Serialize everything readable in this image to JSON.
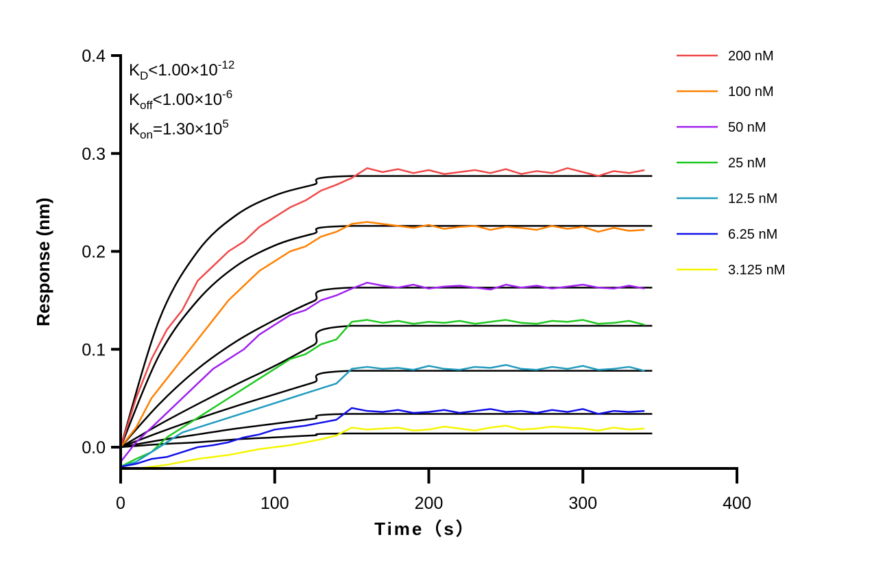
{
  "chart_data": {
    "type": "line",
    "xlabel": "Time（s）",
    "ylabel": "Response (nm)",
    "xlim": [
      0,
      400
    ],
    "ylim": [
      -0.022,
      0.4
    ],
    "xticks": [
      "0",
      "100",
      "200",
      "300",
      "400"
    ],
    "yticks": [
      "0.0",
      "0.1",
      "0.2",
      "0.3",
      "0.4"
    ],
    "grid": false,
    "legend_position": "top-right",
    "annotations": {
      "kd": {
        "main": "K",
        "sub": "D",
        "rel": "<1.00×10",
        "sup": "-12"
      },
      "koff": {
        "main": "K",
        "sub": "off",
        "rel": "<1.00×10",
        "sup": "-6"
      },
      "kon": {
        "main": "K",
        "sub": "on",
        "rel": "=1.30×10",
        "sup": "5"
      }
    },
    "x": [
      0,
      10,
      20,
      30,
      40,
      50,
      60,
      70,
      80,
      90,
      100,
      110,
      120,
      130,
      140,
      150,
      160,
      170,
      180,
      190,
      200,
      210,
      220,
      230,
      240,
      250,
      260,
      270,
      280,
      290,
      300,
      310,
      320,
      330,
      340
    ],
    "fit_color": "#000000",
    "series": [
      {
        "name": "200 nM",
        "color": "#f04848",
        "values": [
          0,
          0.05,
          0.09,
          0.12,
          0.14,
          0.17,
          0.185,
          0.2,
          0.21,
          0.225,
          0.235,
          0.245,
          0.252,
          0.262,
          0.268,
          0.275,
          0.285,
          0.281,
          0.284,
          0.28,
          0.283,
          0.279,
          0.281,
          0.283,
          0.28,
          0.284,
          0.279,
          0.282,
          0.28,
          0.285,
          0.281,
          0.277,
          0.282,
          0.28,
          0.283
        ],
        "fit": [
          [
            0,
            0
          ],
          [
            25,
            0.13
          ],
          [
            50,
            0.2
          ],
          [
            75,
            0.237
          ],
          [
            100,
            0.257
          ],
          [
            125,
            0.268
          ],
          [
            150,
            0.277
          ],
          [
            345,
            0.277
          ]
        ]
      },
      {
        "name": "100 nM",
        "color": "#ff8000",
        "values": [
          0,
          0.02,
          0.05,
          0.07,
          0.09,
          0.11,
          0.13,
          0.15,
          0.165,
          0.18,
          0.19,
          0.2,
          0.205,
          0.215,
          0.22,
          0.228,
          0.23,
          0.228,
          0.226,
          0.224,
          0.227,
          0.223,
          0.225,
          0.226,
          0.222,
          0.225,
          0.224,
          0.222,
          0.226,
          0.223,
          0.225,
          0.22,
          0.224,
          0.221,
          0.222
        ],
        "fit": [
          [
            0,
            0
          ],
          [
            25,
            0.094
          ],
          [
            50,
            0.15
          ],
          [
            75,
            0.185
          ],
          [
            100,
            0.206
          ],
          [
            125,
            0.218
          ],
          [
            150,
            0.226
          ],
          [
            345,
            0.226
          ]
        ]
      },
      {
        "name": "50 nM",
        "color": "#a020f0",
        "values": [
          -0.015,
          0.005,
          0.02,
          0.035,
          0.05,
          0.065,
          0.08,
          0.09,
          0.1,
          0.115,
          0.125,
          0.135,
          0.14,
          0.15,
          0.155,
          0.162,
          0.168,
          0.165,
          0.163,
          0.166,
          0.162,
          0.164,
          0.165,
          0.163,
          0.161,
          0.166,
          0.163,
          0.165,
          0.162,
          0.164,
          0.166,
          0.163,
          0.162,
          0.165,
          0.162
        ],
        "fit": [
          [
            0,
            0
          ],
          [
            25,
            0.044
          ],
          [
            50,
            0.08
          ],
          [
            75,
            0.108
          ],
          [
            100,
            0.13
          ],
          [
            125,
            0.149
          ],
          [
            150,
            0.163
          ],
          [
            345,
            0.163
          ]
        ]
      },
      {
        "name": "25 nM",
        "color": "#1ec81e",
        "values": [
          -0.02,
          -0.012,
          -0.005,
          0.01,
          0.02,
          0.03,
          0.04,
          0.05,
          0.06,
          0.07,
          0.08,
          0.09,
          0.095,
          0.105,
          0.11,
          0.128,
          0.13,
          0.127,
          0.129,
          0.126,
          0.128,
          0.127,
          0.129,
          0.126,
          0.128,
          0.13,
          0.127,
          0.126,
          0.129,
          0.128,
          0.13,
          0.126,
          0.127,
          0.129,
          0.125
        ],
        "fit": [
          [
            0,
            0
          ],
          [
            25,
            0.023
          ],
          [
            50,
            0.044
          ],
          [
            75,
            0.064
          ],
          [
            100,
            0.083
          ],
          [
            125,
            0.104
          ],
          [
            150,
            0.124
          ],
          [
            345,
            0.124
          ]
        ]
      },
      {
        "name": "12.5 nM",
        "color": "#1f9bbf",
        "values": [
          -0.02,
          -0.015,
          -0.005,
          0.005,
          0.015,
          0.02,
          0.025,
          0.03,
          0.035,
          0.04,
          0.045,
          0.05,
          0.055,
          0.06,
          0.065,
          0.08,
          0.082,
          0.08,
          0.081,
          0.079,
          0.083,
          0.08,
          0.079,
          0.082,
          0.081,
          0.084,
          0.08,
          0.079,
          0.082,
          0.08,
          0.083,
          0.079,
          0.08,
          0.082,
          0.078
        ],
        "fit": [
          [
            0,
            0
          ],
          [
            25,
            0.015
          ],
          [
            50,
            0.029
          ],
          [
            75,
            0.042
          ],
          [
            100,
            0.054
          ],
          [
            125,
            0.066
          ],
          [
            150,
            0.078
          ],
          [
            345,
            0.078
          ]
        ]
      },
      {
        "name": "6.25 nM",
        "color": "#1010e8",
        "values": [
          -0.02,
          -0.017,
          -0.012,
          -0.01,
          -0.005,
          0,
          0.002,
          0.005,
          0.01,
          0.013,
          0.018,
          0.02,
          0.022,
          0.025,
          0.028,
          0.04,
          0.037,
          0.036,
          0.038,
          0.035,
          0.036,
          0.038,
          0.035,
          0.037,
          0.039,
          0.036,
          0.037,
          0.035,
          0.038,
          0.036,
          0.039,
          0.034,
          0.037,
          0.036,
          0.037
        ],
        "fit": [
          [
            0,
            0
          ],
          [
            25,
            0.007
          ],
          [
            50,
            0.013
          ],
          [
            75,
            0.019
          ],
          [
            100,
            0.024
          ],
          [
            125,
            0.029
          ],
          [
            150,
            0.034
          ],
          [
            345,
            0.034
          ]
        ]
      },
      {
        "name": "3.125 nM",
        "color": "#f5f500",
        "values": [
          -0.022,
          -0.022,
          -0.02,
          -0.018,
          -0.015,
          -0.012,
          -0.01,
          -0.008,
          -0.005,
          -0.002,
          0,
          0.002,
          0.005,
          0.008,
          0.012,
          0.02,
          0.018,
          0.019,
          0.02,
          0.017,
          0.018,
          0.021,
          0.019,
          0.017,
          0.02,
          0.022,
          0.018,
          0.019,
          0.021,
          0.02,
          0.019,
          0.017,
          0.02,
          0.018,
          0.019
        ],
        "fit": [
          [
            0,
            0
          ],
          [
            25,
            0.003
          ],
          [
            50,
            0.005
          ],
          [
            75,
            0.008
          ],
          [
            100,
            0.01
          ],
          [
            125,
            0.012
          ],
          [
            150,
            0.014
          ],
          [
            345,
            0.014
          ]
        ]
      }
    ]
  }
}
